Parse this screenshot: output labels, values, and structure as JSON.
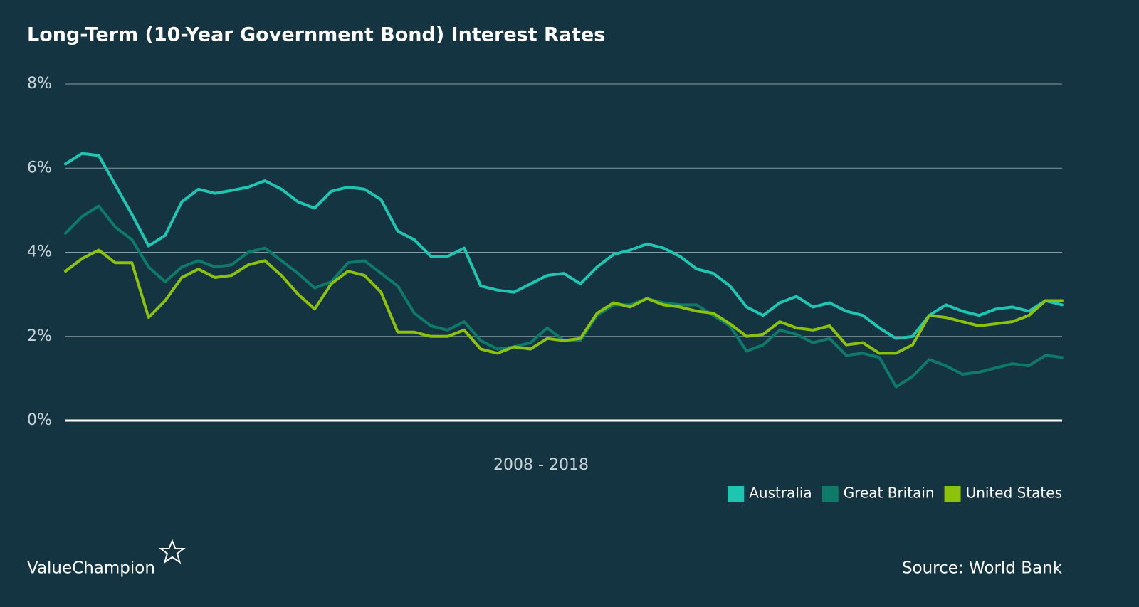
{
  "chart_data": {
    "type": "line",
    "title": "Long-Term (10-Year Government Bond) Interest Rates",
    "x_label": "2008 - 2018",
    "brand": "ValueChampion",
    "source": "Source: World Bank",
    "categories": [
      null,
      null,
      null,
      null,
      null,
      null,
      null,
      null,
      null,
      null,
      null,
      null,
      null,
      null,
      null,
      null,
      null,
      null,
      null,
      null,
      null,
      null,
      null,
      null,
      null,
      null,
      null,
      null,
      null,
      null,
      null,
      null,
      null,
      null,
      null,
      null,
      null,
      null,
      null,
      null,
      null,
      null,
      null,
      null,
      null,
      null,
      null,
      null,
      null,
      null,
      null,
      null,
      null,
      null,
      null,
      null,
      null,
      null,
      null,
      null,
      null
    ],
    "series": [
      {
        "name": "Australia",
        "color": "#1dc6b0",
        "values": [
          6.1,
          6.35,
          6.3,
          5.6,
          4.9,
          4.15,
          4.4,
          5.2,
          5.5,
          5.4,
          5.47,
          5.55,
          5.7,
          5.5,
          5.2,
          5.05,
          5.45,
          5.55,
          5.5,
          5.25,
          4.5,
          4.3,
          3.9,
          3.9,
          4.1,
          3.2,
          3.1,
          3.05,
          3.25,
          3.45,
          3.5,
          3.25,
          3.65,
          3.95,
          4.05,
          4.2,
          4.1,
          3.9,
          3.6,
          3.5,
          3.2,
          2.7,
          2.5,
          2.8,
          2.95,
          2.7,
          2.8,
          2.6,
          2.5,
          2.2,
          1.95,
          2.0,
          2.5,
          2.75,
          2.6,
          2.5,
          2.65,
          2.7,
          2.6,
          2.85,
          2.75
        ]
      },
      {
        "name": "Great Britain",
        "color": "#0d7a6a",
        "values": [
          4.45,
          4.85,
          5.1,
          4.6,
          4.3,
          3.65,
          3.3,
          3.65,
          3.8,
          3.65,
          3.7,
          4.0,
          4.1,
          3.8,
          3.5,
          3.15,
          3.3,
          3.75,
          3.8,
          3.5,
          3.2,
          2.55,
          2.25,
          2.15,
          2.35,
          1.9,
          1.7,
          1.75,
          1.85,
          2.2,
          1.9,
          1.9,
          2.5,
          2.75,
          2.75,
          2.9,
          2.8,
          2.75,
          2.75,
          2.5,
          2.25,
          1.65,
          1.8,
          2.15,
          2.05,
          1.85,
          1.95,
          1.55,
          1.6,
          1.5,
          0.8,
          1.05,
          1.45,
          1.3,
          1.1,
          1.15,
          1.25,
          1.35,
          1.3,
          1.55,
          1.5
        ]
      },
      {
        "name": "United States",
        "color": "#8cc10c",
        "values": [
          3.55,
          3.85,
          4.05,
          3.75,
          3.75,
          2.45,
          2.85,
          3.4,
          3.6,
          3.4,
          3.45,
          3.7,
          3.8,
          3.45,
          3.0,
          2.65,
          3.25,
          3.55,
          3.45,
          3.05,
          2.1,
          2.1,
          2.0,
          2.0,
          2.15,
          1.7,
          1.6,
          1.75,
          1.7,
          1.95,
          1.9,
          1.95,
          2.55,
          2.8,
          2.7,
          2.9,
          2.75,
          2.7,
          2.6,
          2.55,
          2.3,
          2.0,
          2.05,
          2.35,
          2.2,
          2.15,
          2.25,
          1.8,
          1.85,
          1.6,
          1.6,
          1.8,
          2.5,
          2.45,
          2.35,
          2.25,
          2.3,
          2.35,
          2.5,
          2.85,
          2.85
        ]
      }
    ],
    "ylim": [
      0,
      8
    ],
    "yticks": [
      {
        "value": 0,
        "label": "0%"
      },
      {
        "value": 2,
        "label": "2%"
      },
      {
        "value": 4,
        "label": "4%"
      },
      {
        "value": 6,
        "label": "6%"
      },
      {
        "value": 8,
        "label": "8%"
      }
    ],
    "grid": true,
    "legend": "bottom-right"
  }
}
